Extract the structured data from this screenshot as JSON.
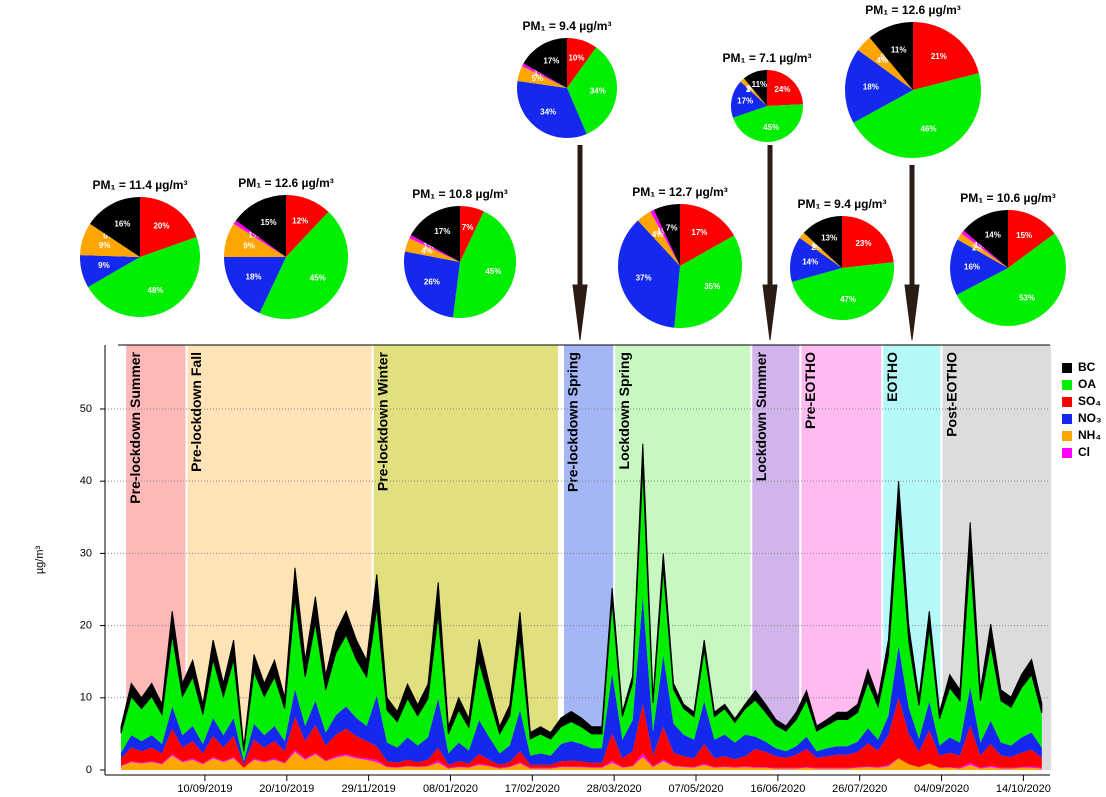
{
  "chart_data": [
    {
      "type": "area",
      "ylabel": "µg/m³",
      "xlim": [
        "30/07/2019",
        "27/10/2020"
      ],
      "ylim": [
        0,
        59
      ],
      "yticks": [
        0,
        10,
        20,
        30,
        40,
        50
      ],
      "xticks": [
        "10/09/2019",
        "20/10/2019",
        "29/11/2019",
        "08/01/2020",
        "17/02/2020",
        "28/03/2020",
        "07/05/2020",
        "16/06/2020",
        "26/07/2020",
        "04/09/2020",
        "14/10/2020"
      ],
      "grid": true,
      "legend": "right",
      "periods": [
        {
          "label": "Pre-lockdown Summer",
          "start": "02/08/2019",
          "end": "31/08/2019",
          "color": "#ffb8b8"
        },
        {
          "label": "Pre-lockdown Fall",
          "start": "01/09/2019",
          "end": "30/11/2019",
          "color": "#fde3b6"
        },
        {
          "label": "Pre-lockdown Winter",
          "start": "01/12/2019",
          "end": "29/02/2020",
          "color": "#e0e07e"
        },
        {
          "label": "Pre-lockdown Spring",
          "start": "03/03/2020",
          "end": "27/03/2020",
          "color": "#a4b6f6"
        },
        {
          "label": "Lockdown Spring",
          "start": "28/03/2020",
          "end": "02/06/2020",
          "color": "#c8f7c2"
        },
        {
          "label": "Lockdown Summer",
          "start": "03/06/2020",
          "end": "26/06/2020",
          "color": "#d2b4ec"
        },
        {
          "label": "Pre-EOTHO",
          "start": "27/06/2020",
          "end": "05/08/2020",
          "color": "#ffbaf0"
        },
        {
          "label": "EOTHO",
          "start": "06/08/2020",
          "end": "03/09/2020",
          "color": "#b4f8f8"
        },
        {
          "label": "Post-EOTHO",
          "start": "04/09/2020",
          "end": "27/10/2020",
          "color": "#dcdcdc"
        }
      ],
      "x": [
        "31/07/2019",
        "05/08/2019",
        "10/08/2019",
        "15/08/2019",
        "20/08/2019",
        "25/08/2019",
        "30/08/2019",
        "04/09/2019",
        "09/09/2019",
        "14/09/2019",
        "19/09/2019",
        "24/09/2019",
        "29/09/2019",
        "04/10/2019",
        "09/10/2019",
        "14/10/2019",
        "19/10/2019",
        "24/10/2019",
        "29/10/2019",
        "03/11/2019",
        "08/11/2019",
        "13/11/2019",
        "18/11/2019",
        "23/11/2019",
        "28/11/2019",
        "03/12/2019",
        "08/12/2019",
        "13/12/2019",
        "18/12/2019",
        "23/12/2019",
        "28/12/2019",
        "02/01/2020",
        "07/01/2020",
        "12/01/2020",
        "17/01/2020",
        "22/01/2020",
        "27/01/2020",
        "01/02/2020",
        "06/02/2020",
        "11/02/2020",
        "16/02/2020",
        "21/02/2020",
        "26/02/2020",
        "02/03/2020",
        "07/03/2020",
        "12/03/2020",
        "17/03/2020",
        "22/03/2020",
        "27/03/2020",
        "01/04/2020",
        "06/04/2020",
        "11/04/2020",
        "16/04/2020",
        "21/04/2020",
        "26/04/2020",
        "01/05/2020",
        "06/05/2020",
        "11/05/2020",
        "16/05/2020",
        "21/05/2020",
        "26/05/2020",
        "31/05/2020",
        "05/06/2020",
        "10/06/2020",
        "15/06/2020",
        "20/06/2020",
        "25/06/2020",
        "30/06/2020",
        "05/07/2020",
        "10/07/2020",
        "15/07/2020",
        "20/07/2020",
        "25/07/2020",
        "30/07/2020",
        "04/08/2020",
        "09/08/2020",
        "14/08/2020",
        "19/08/2020",
        "24/08/2020",
        "29/08/2020",
        "03/09/2020",
        "08/09/2020",
        "13/09/2020",
        "18/09/2020",
        "23/09/2020",
        "28/09/2020",
        "03/10/2020",
        "08/10/2020",
        "13/10/2020",
        "18/10/2020",
        "23/10/2020"
      ],
      "series": [
        {
          "name": "BC",
          "color": "#000000",
          "values": [
            0.9,
            1.8,
            1.5,
            1.8,
            1.4,
            3.3,
            1.8,
            2.3,
            1.4,
            2.7,
            1.8,
            2.7,
            0.5,
            2.4,
            1.8,
            2.3,
            1.5,
            4.2,
            2.3,
            3.6,
            2.0,
            2.9,
            3.3,
            2.7,
            2.3,
            4.6,
            1.7,
            1.4,
            2.0,
            1.5,
            2.0,
            4.4,
            1.0,
            1.7,
            1.2,
            3.1,
            2.0,
            1.0,
            1.5,
            3.7,
            0.9,
            1.0,
            0.9,
            1.2,
            1.4,
            1.2,
            1.0,
            1.0,
            1.8,
            0.6,
            0.9,
            3.2,
            0.7,
            2.1,
            0.8,
            0.6,
            0.6,
            1.3,
            0.6,
            0.6,
            0.5,
            0.6,
            1.3,
            1.1,
            0.8,
            0.7,
            1.0,
            1.3,
            0.7,
            0.8,
            1.0,
            1.0,
            1.1,
            1.7,
            1.2,
            2.2,
            4.4,
            2.2,
            1.1,
            2.4,
            0.9,
            1.8,
            1.5,
            4.8,
            1.5,
            2.8,
            1.5,
            1.4,
            1.8,
            2.1,
            1.3
          ]
        },
        {
          "name": "OA",
          "color": "#00ee00",
          "values": [
            2.7,
            5.4,
            4.5,
            5.4,
            4.1,
            9.9,
            5.4,
            6.8,
            4.1,
            8.1,
            5.4,
            8.1,
            1.4,
            7.2,
            5.4,
            6.8,
            4.5,
            12.6,
            6.8,
            10.8,
            5.9,
            8.6,
            9.9,
            8.1,
            6.8,
            12.2,
            4.5,
            3.6,
            5.4,
            4.1,
            5.4,
            11.7,
            2.7,
            4.5,
            3.2,
            8.1,
            5.4,
            2.7,
            4.1,
            9.9,
            2.3,
            2.7,
            2.3,
            2.4,
            2.7,
            2.4,
            2.0,
            2.0,
            10.0,
            3.2,
            5.2,
            18.0,
            4.0,
            12.0,
            4.8,
            3.6,
            3.2,
            7.2,
            3.2,
            3.6,
            2.8,
            3.6,
            5.1,
            4.1,
            3.2,
            2.8,
            3.7,
            5.1,
            2.8,
            3.2,
            3.7,
            3.7,
            4.1,
            6.4,
            4.6,
            8.3,
            18.4,
            9.2,
            4.6,
            10.1,
            3.7,
            6.9,
            5.8,
            18.0,
            5.8,
            10.6,
            5.8,
            5.3,
            6.9,
            8.0,
            4.8
          ]
        },
        {
          "name": "SO₄",
          "color": "#ff0000",
          "values": [
            1.0,
            1.9,
            1.6,
            1.9,
            1.4,
            3.5,
            1.9,
            2.4,
            1.4,
            2.9,
            1.9,
            2.9,
            0.5,
            2.6,
            1.9,
            2.4,
            1.6,
            4.5,
            2.4,
            3.8,
            2.1,
            3.0,
            3.5,
            2.9,
            2.4,
            1.9,
            0.7,
            0.6,
            0.8,
            0.6,
            0.8,
            1.8,
            0.4,
            0.7,
            0.5,
            1.3,
            0.8,
            0.4,
            0.6,
            1.5,
            0.4,
            0.4,
            0.4,
            0.7,
            0.8,
            0.7,
            0.6,
            0.6,
            3.8,
            1.2,
            2.0,
            6.8,
            1.5,
            4.5,
            1.8,
            1.4,
            1.2,
            2.7,
            1.2,
            1.4,
            1.1,
            1.4,
            2.5,
            2.1,
            1.6,
            1.4,
            1.8,
            2.5,
            1.4,
            1.6,
            1.8,
            1.8,
            2.1,
            3.2,
            2.3,
            4.1,
            8.4,
            4.2,
            2.1,
            4.6,
            1.7,
            2.0,
            1.7,
            5.1,
            1.7,
            3.0,
            1.7,
            1.5,
            2.0,
            2.3,
            1.4
          ]
        },
        {
          "name": "NO₃",
          "color": "#1428f0",
          "values": [
            0.8,
            1.7,
            1.4,
            1.7,
            1.3,
            3.1,
            1.7,
            2.1,
            1.3,
            2.5,
            1.7,
            2.5,
            0.4,
            2.2,
            1.7,
            2.1,
            1.4,
            3.9,
            2.1,
            3.4,
            1.8,
            2.7,
            3.1,
            2.5,
            2.1,
            7.0,
            2.6,
            2.1,
            3.1,
            2.3,
            3.1,
            6.8,
            1.6,
            2.6,
            1.8,
            4.7,
            3.1,
            1.6,
            2.3,
            5.7,
            1.3,
            1.6,
            1.3,
            2.4,
            2.7,
            2.4,
            2.0,
            2.0,
            8.3,
            2.6,
            4.3,
            14.9,
            3.3,
            9.9,
            4.0,
            3.0,
            2.6,
            5.9,
            2.6,
            3.0,
            2.3,
            3.0,
            1.7,
            1.4,
            1.1,
            0.9,
            1.2,
            1.7,
            0.9,
            1.1,
            1.2,
            1.2,
            1.4,
            2.1,
            1.5,
            2.7,
            7.2,
            3.6,
            1.8,
            4.0,
            1.4,
            2.1,
            1.8,
            5.4,
            1.8,
            3.2,
            1.8,
            1.6,
            2.1,
            2.4,
            1.4
          ]
        },
        {
          "name": "NH₄",
          "color": "#ffa500",
          "values": [
            0.5,
            1.1,
            0.9,
            1.1,
            0.8,
            2.0,
            1.1,
            1.4,
            0.8,
            1.6,
            1.1,
            1.6,
            0.3,
            1.4,
            1.1,
            1.4,
            0.9,
            2.5,
            1.4,
            2.2,
            1.2,
            1.7,
            2.0,
            1.6,
            1.4,
            1.1,
            0.4,
            0.3,
            0.5,
            0.4,
            0.5,
            1.0,
            0.2,
            0.4,
            0.3,
            0.7,
            0.5,
            0.2,
            0.4,
            0.9,
            0.2,
            0.2,
            0.2,
            0.4,
            0.4,
            0.4,
            0.3,
            0.3,
            1.0,
            0.3,
            0.5,
            1.8,
            0.4,
            1.2,
            0.5,
            0.4,
            0.3,
            0.7,
            0.3,
            0.4,
            0.3,
            0.4,
            0.3,
            0.3,
            0.2,
            0.2,
            0.2,
            0.3,
            0.2,
            0.2,
            0.2,
            0.2,
            0.3,
            0.4,
            0.3,
            0.5,
            1.6,
            0.8,
            0.4,
            0.9,
            0.3,
            0.3,
            0.2,
            0.7,
            0.2,
            0.4,
            0.2,
            0.2,
            0.3,
            0.3,
            0.2
          ]
        },
        {
          "name": "Cl",
          "color": "#ff00ff",
          "values": [
            0.1,
            0.1,
            0.1,
            0.1,
            0.1,
            0.2,
            0.1,
            0.2,
            0.1,
            0.2,
            0.1,
            0.2,
            0,
            0.2,
            0.1,
            0.2,
            0.1,
            0.3,
            0.2,
            0.2,
            0.1,
            0.2,
            0.2,
            0.2,
            0.2,
            0.3,
            0.1,
            0.1,
            0.1,
            0.1,
            0.1,
            0.3,
            0.1,
            0.1,
            0.1,
            0.2,
            0.1,
            0.1,
            0.1,
            0.2,
            0.1,
            0.1,
            0.1,
            0.1,
            0.1,
            0.1,
            0.1,
            0.1,
            0.3,
            0.1,
            0.1,
            0.5,
            0.1,
            0.3,
            0.1,
            0.1,
            0.1,
            0.2,
            0.1,
            0.1,
            0.1,
            0.1,
            0.1,
            0.1,
            0.1,
            0.1,
            0.1,
            0.1,
            0.1,
            0.1,
            0.1,
            0.1,
            0.1,
            0.1,
            0.1,
            0.2,
            0,
            0,
            0,
            0,
            0,
            0.1,
            0.1,
            0.3,
            0.1,
            0.2,
            0.1,
            0.1,
            0.1,
            0.2,
            0.1
          ]
        }
      ]
    },
    {
      "type": "pie",
      "title": "PM₁ = 11.4 µg/m³",
      "values": [
        20,
        48,
        9,
        9,
        0,
        16
      ],
      "value_labels": [
        "20%",
        "48%",
        "9%",
        "9%",
        "0%",
        "16%"
      ],
      "colors": [
        "#ff0000",
        "#00ee00",
        "#1428f0",
        "#ffa500",
        "#ff00ff",
        "#000000"
      ]
    },
    {
      "type": "pie",
      "title": "PM₁ = 12.6 µg/m³",
      "values": [
        12,
        45,
        18,
        9,
        1,
        15
      ],
      "value_labels": [
        "12%",
        "45%",
        "18%",
        "9%",
        "1%",
        "15%"
      ],
      "colors": [
        "#ff0000",
        "#00ee00",
        "#1428f0",
        "#ffa500",
        "#ff00ff",
        "#000000"
      ]
    },
    {
      "type": "pie",
      "title": "PM₁ = 10.8 µg/m³",
      "values": [
        7,
        45,
        26,
        4,
        1,
        17
      ],
      "value_labels": [
        "7%",
        "45%",
        "26%",
        "4%",
        "1%",
        "17%"
      ],
      "colors": [
        "#ff0000",
        "#00ee00",
        "#1428f0",
        "#ffa500",
        "#ff00ff",
        "#000000"
      ]
    },
    {
      "type": "pie",
      "title": "PM₁ = 9.4 µg/m³",
      "values": [
        10,
        34,
        34,
        5,
        1,
        17
      ],
      "value_labels": [
        "10%",
        "34%",
        "34%",
        "5%",
        "1%",
        "17%"
      ],
      "colors": [
        "#ff0000",
        "#00ee00",
        "#1428f0",
        "#ffa500",
        "#ff00ff",
        "#000000"
      ]
    },
    {
      "type": "pie",
      "title": "PM₁ = 12.7 µg/m³",
      "values": [
        17,
        35,
        37,
        4,
        1,
        7
      ],
      "value_labels": [
        "17%",
        "35%",
        "37%",
        "4%",
        "1%",
        "7%"
      ],
      "colors": [
        "#ff0000",
        "#00ee00",
        "#1428f0",
        "#ffa500",
        "#ff00ff",
        "#000000"
      ]
    },
    {
      "type": "pie",
      "title": "PM₁ = 7.1 µg/m³",
      "values": [
        24,
        45,
        17,
        2,
        0,
        11
      ],
      "value_labels": [
        "24%",
        "45%",
        "17%",
        "2%",
        "0%",
        "11%"
      ],
      "colors": [
        "#ff0000",
        "#00ee00",
        "#1428f0",
        "#ffa500",
        "#ff00ff",
        "#000000"
      ]
    },
    {
      "type": "pie",
      "title": "PM₁ = 12.6 µg/m³",
      "values": [
        21,
        46,
        18,
        4,
        0,
        11
      ],
      "value_labels": [
        "21%",
        "46%",
        "18%",
        "4%",
        "0%",
        "11%"
      ],
      "colors": [
        "#ff0000",
        "#00ee00",
        "#1428f0",
        "#ffa500",
        "#ff00ff",
        "#000000"
      ]
    },
    {
      "type": "pie",
      "title": "PM₁ = 9.4 µg/m³",
      "values": [
        23,
        47,
        14,
        2,
        0,
        13
      ],
      "value_labels": [
        "23%",
        "47%",
        "14%",
        "2%",
        "0%",
        "13%"
      ],
      "colors": [
        "#ff0000",
        "#00ee00",
        "#1428f0",
        "#ffa500",
        "#ff00ff",
        "#000000"
      ]
    },
    {
      "type": "pie",
      "title": "PM₁ = 10.6 µg/m³",
      "values": [
        15,
        53,
        16,
        2,
        1,
        14
      ],
      "value_labels": [
        "15%",
        "53%",
        "16%",
        "2%",
        "1%",
        "14%"
      ],
      "colors": [
        "#ff0000",
        "#00ee00",
        "#1428f0",
        "#ffa500",
        "#ff00ff",
        "#000000"
      ]
    }
  ]
}
